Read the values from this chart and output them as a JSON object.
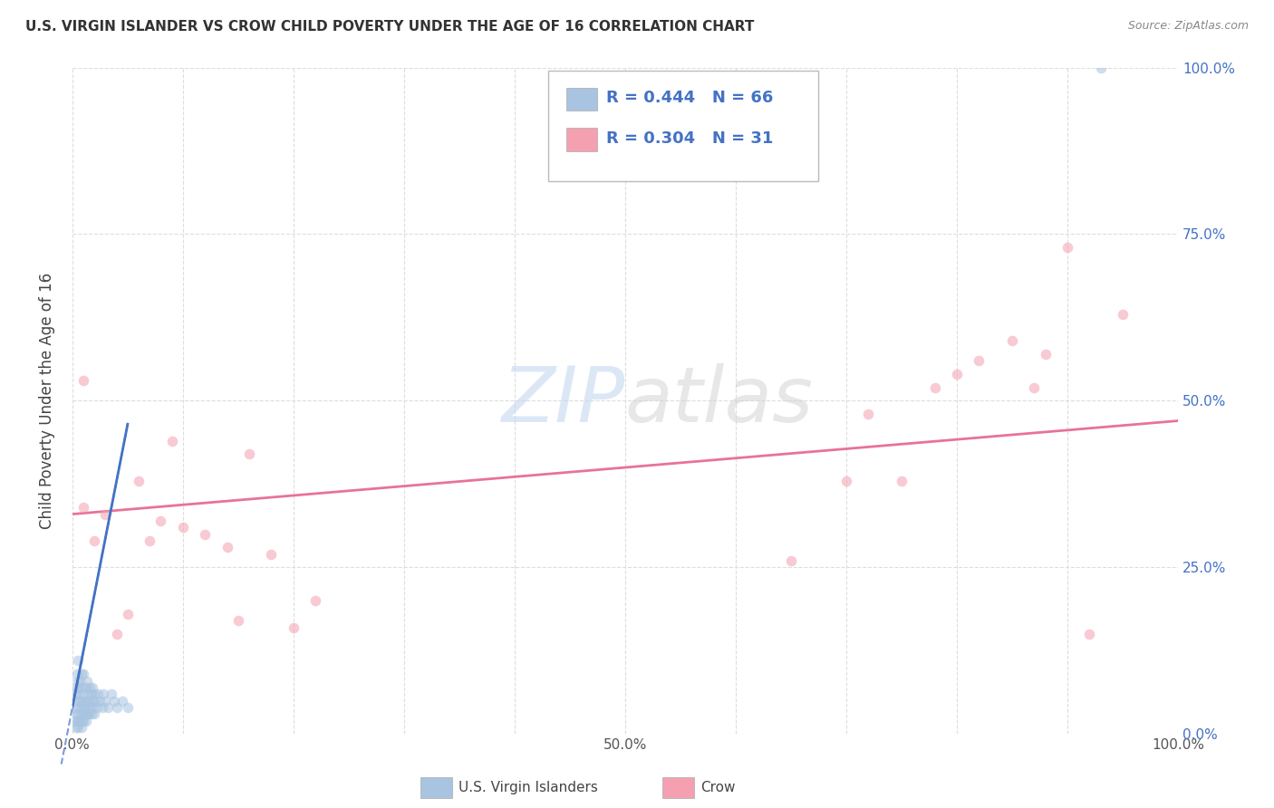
{
  "title": "U.S. VIRGIN ISLANDER VS CROW CHILD POVERTY UNDER THE AGE OF 16 CORRELATION CHART",
  "source": "Source: ZipAtlas.com",
  "ylabel": "Child Poverty Under the Age of 16",
  "xlim": [
    0.0,
    1.0
  ],
  "ylim": [
    0.0,
    1.0
  ],
  "vi_color": "#a8c4e0",
  "crow_color": "#f4a0b0",
  "vi_line_color": "#4472c4",
  "crow_line_color": "#e8729a",
  "vi_R": 0.444,
  "vi_N": 66,
  "crow_R": 0.304,
  "crow_N": 31,
  "legend_label_vi": "U.S. Virgin Islanders",
  "legend_label_crow": "Crow",
  "vi_scatter_x": [
    0.002,
    0.002,
    0.003,
    0.003,
    0.003,
    0.004,
    0.004,
    0.004,
    0.004,
    0.005,
    0.005,
    0.005,
    0.005,
    0.005,
    0.006,
    0.006,
    0.006,
    0.007,
    0.007,
    0.007,
    0.008,
    0.008,
    0.008,
    0.008,
    0.009,
    0.009,
    0.009,
    0.01,
    0.01,
    0.01,
    0.01,
    0.011,
    0.011,
    0.012,
    0.012,
    0.012,
    0.013,
    0.013,
    0.013,
    0.014,
    0.014,
    0.015,
    0.015,
    0.016,
    0.016,
    0.017,
    0.017,
    0.018,
    0.018,
    0.019,
    0.02,
    0.02,
    0.021,
    0.022,
    0.023,
    0.025,
    0.027,
    0.028,
    0.03,
    0.032,
    0.035,
    0.038,
    0.04,
    0.045,
    0.05,
    0.93
  ],
  "vi_scatter_y": [
    0.02,
    0.04,
    0.01,
    0.03,
    0.06,
    0.02,
    0.05,
    0.07,
    0.09,
    0.01,
    0.03,
    0.06,
    0.08,
    0.11,
    0.02,
    0.04,
    0.07,
    0.02,
    0.05,
    0.08,
    0.01,
    0.03,
    0.05,
    0.09,
    0.02,
    0.04,
    0.07,
    0.02,
    0.04,
    0.06,
    0.09,
    0.03,
    0.05,
    0.02,
    0.04,
    0.07,
    0.03,
    0.05,
    0.08,
    0.03,
    0.06,
    0.03,
    0.05,
    0.04,
    0.07,
    0.03,
    0.06,
    0.04,
    0.07,
    0.05,
    0.03,
    0.06,
    0.05,
    0.04,
    0.06,
    0.05,
    0.04,
    0.06,
    0.05,
    0.04,
    0.06,
    0.05,
    0.04,
    0.05,
    0.04,
    1.0
  ],
  "crow_scatter_x": [
    0.01,
    0.01,
    0.02,
    0.03,
    0.04,
    0.05,
    0.06,
    0.07,
    0.08,
    0.09,
    0.1,
    0.12,
    0.14,
    0.15,
    0.16,
    0.18,
    0.2,
    0.22,
    0.65,
    0.7,
    0.72,
    0.75,
    0.78,
    0.8,
    0.82,
    0.85,
    0.87,
    0.88,
    0.9,
    0.92,
    0.95
  ],
  "crow_scatter_y": [
    0.53,
    0.34,
    0.29,
    0.33,
    0.15,
    0.18,
    0.38,
    0.29,
    0.32,
    0.44,
    0.31,
    0.3,
    0.28,
    0.17,
    0.42,
    0.27,
    0.16,
    0.2,
    0.26,
    0.38,
    0.48,
    0.38,
    0.52,
    0.54,
    0.56,
    0.59,
    0.52,
    0.57,
    0.73,
    0.15,
    0.63
  ],
  "background_color": "#ffffff",
  "grid_color": "#dddddd",
  "marker_size": 70,
  "marker_alpha": 0.55,
  "vi_trend_slope": 8.5,
  "vi_trend_intercept": 0.04,
  "crow_trend_slope": 0.14,
  "crow_trend_intercept": 0.33
}
